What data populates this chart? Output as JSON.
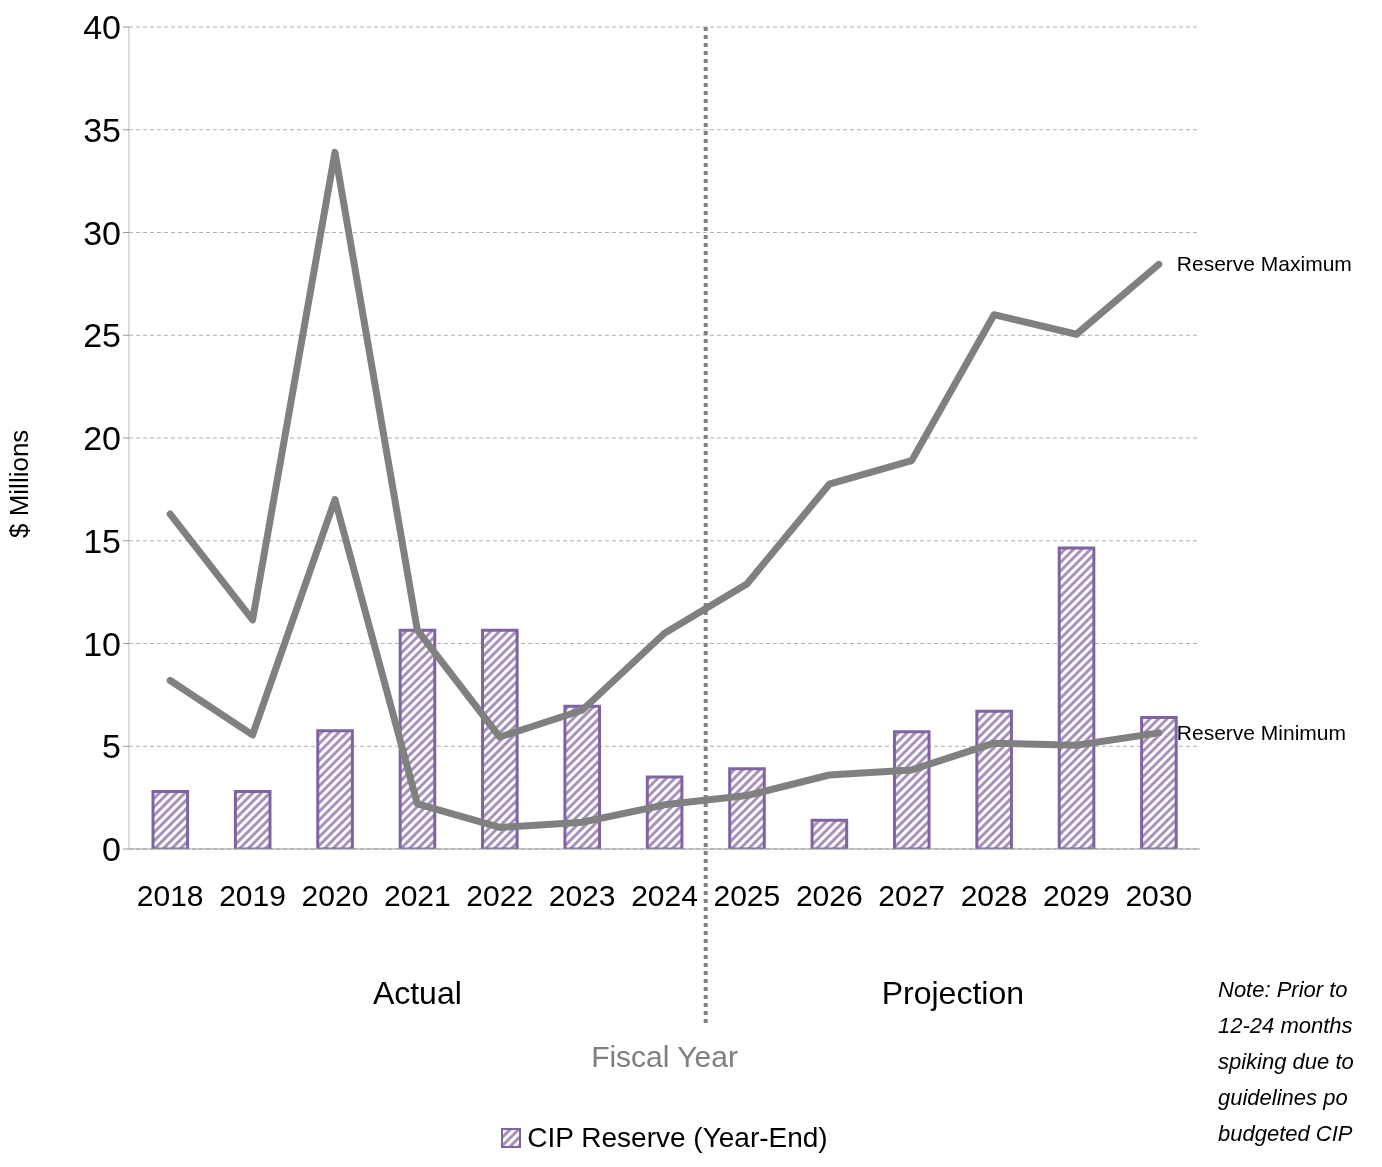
{
  "chart_data": {
    "type": "bar",
    "xlabel": "Fiscal Year",
    "ylabel": "$ Millions",
    "categories": [
      "2018",
      "2019",
      "2020",
      "2021",
      "2022",
      "2023",
      "2024",
      "2025",
      "2026",
      "2027",
      "2028",
      "2029",
      "2030"
    ],
    "series": [
      {
        "name": "CIP Reserve (Year-End)",
        "color": "#8064a2",
        "values": [
          2.8,
          2.8,
          5.75,
          10.65,
          10.65,
          6.95,
          3.5,
          3.9,
          1.4,
          5.7,
          6.7,
          14.65,
          6.4
        ]
      },
      {
        "name": "Reserve Maximum",
        "type": "line",
        "color": "#808080",
        "values": [
          16.3,
          11.15,
          33.9,
          10.65,
          5.45,
          6.75,
          10.5,
          12.9,
          17.75,
          18.9,
          26,
          25.05,
          28.45
        ]
      },
      {
        "name": "Reserve Minimum",
        "type": "line",
        "color": "#808080",
        "values": [
          8.2,
          5.55,
          17,
          2.2,
          1.05,
          1.3,
          2.15,
          2.6,
          3.6,
          3.85,
          5.15,
          5.05,
          5.65
        ]
      }
    ],
    "ylim": [
      0,
      40
    ],
    "yticks": [
      0,
      5,
      10,
      15,
      20,
      25,
      30,
      35,
      40
    ],
    "grid": "y",
    "legend": "bottom",
    "marker": "none",
    "line_style": "solid",
    "ref_lines": [
      {
        "axis": "x",
        "value": "2024",
        "color": "#808080",
        "line_style": "dotted"
      }
    ],
    "annotations": [
      "Actual",
      "Projection",
      "Note: Prior to 12-24 months spiking due to guidelines po budgeted CIP"
    ]
  }
}
